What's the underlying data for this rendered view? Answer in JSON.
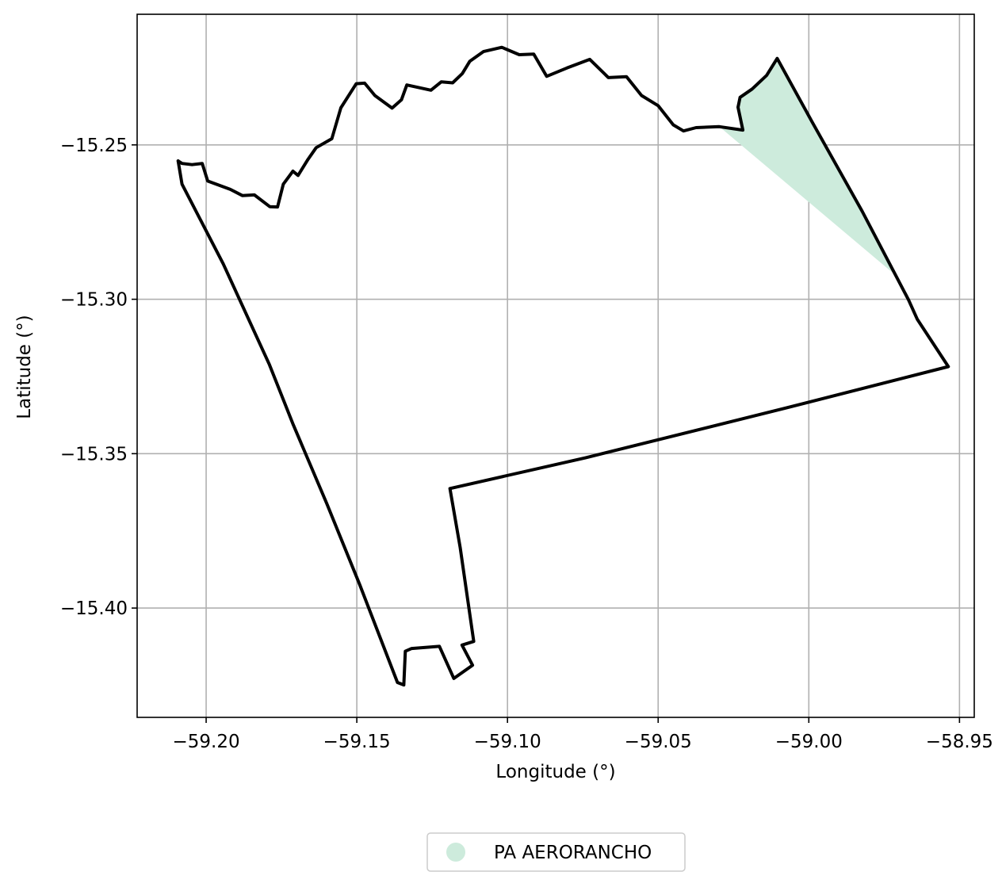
{
  "chart_data": {
    "type": "map",
    "title": "",
    "xlabel": "Longitude (°)",
    "ylabel": "Latitude (°)",
    "xlim": [
      -59.2229,
      -58.9451
    ],
    "ylim": [
      -15.4354,
      -15.2077
    ],
    "grid": true,
    "x_ticks": [
      -59.2,
      -59.15,
      -59.1,
      -59.05,
      -59.0,
      -58.95
    ],
    "x_tick_labels": [
      "−59.20",
      "−59.15",
      "−59.10",
      "−59.05",
      "−59.00",
      "−58.95"
    ],
    "y_ticks": [
      -15.25,
      -15.3,
      -15.35,
      -15.4
    ],
    "y_tick_labels": [
      "−15.25",
      "−15.30",
      "−15.35",
      "−15.40"
    ],
    "legend": {
      "placement": "bottom-center",
      "entries": [
        {
          "label": "PA AERORANCHO",
          "color": "#cdebdc"
        }
      ]
    },
    "series": [
      {
        "name": "boundary",
        "kind": "outline",
        "color": "#000000",
        "points": [
          [
            -59.2093,
            -15.2552
          ],
          [
            -59.208,
            -15.256
          ],
          [
            -59.2047,
            -15.2564
          ],
          [
            -59.2013,
            -15.256
          ],
          [
            -59.1995,
            -15.2617
          ],
          [
            -59.192,
            -15.2644
          ],
          [
            -59.188,
            -15.2664
          ],
          [
            -59.184,
            -15.2662
          ],
          [
            -59.1789,
            -15.27
          ],
          [
            -59.1763,
            -15.2701
          ],
          [
            -59.1744,
            -15.2627
          ],
          [
            -59.1712,
            -15.2585
          ],
          [
            -59.1695,
            -15.2599
          ],
          [
            -59.1662,
            -15.2547
          ],
          [
            -59.1635,
            -15.2509
          ],
          [
            -59.1583,
            -15.248
          ],
          [
            -59.1553,
            -15.238
          ],
          [
            -59.1502,
            -15.2302
          ],
          [
            -59.1474,
            -15.23
          ],
          [
            -59.144,
            -15.234
          ],
          [
            -59.1383,
            -15.2381
          ],
          [
            -59.1352,
            -15.2354
          ],
          [
            -59.1334,
            -15.2306
          ],
          [
            -59.1254,
            -15.2323
          ],
          [
            -59.122,
            -15.2296
          ],
          [
            -59.1182,
            -15.2299
          ],
          [
            -59.115,
            -15.2269
          ],
          [
            -59.1125,
            -15.2229
          ],
          [
            -59.108,
            -15.2198
          ],
          [
            -59.1019,
            -15.2184
          ],
          [
            -59.0961,
            -15.2208
          ],
          [
            -59.0913,
            -15.2206
          ],
          [
            -59.087,
            -15.2278
          ],
          [
            -59.0803,
            -15.2251
          ],
          [
            -59.0727,
            -15.2223
          ],
          [
            -59.0665,
            -15.2282
          ],
          [
            -59.0605,
            -15.2279
          ],
          [
            -59.0555,
            -15.234
          ],
          [
            -59.05,
            -15.2373
          ],
          [
            -59.045,
            -15.2435
          ],
          [
            -59.0416,
            -15.2455
          ],
          [
            -59.0374,
            -15.2444
          ],
          [
            -59.0297,
            -15.2441
          ],
          [
            -59.0219,
            -15.2452
          ],
          [
            -59.0235,
            -15.2378
          ],
          [
            -59.0228,
            -15.2346
          ],
          [
            -59.0188,
            -15.2319
          ],
          [
            -59.014,
            -15.2275
          ],
          [
            -59.0105,
            -15.222
          ],
          [
            -58.999,
            -15.2424
          ],
          [
            -58.9823,
            -15.2715
          ],
          [
            -58.9669,
            -15.3002
          ],
          [
            -58.964,
            -15.3065
          ],
          [
            -58.9537,
            -15.3218
          ],
          [
            -59.008,
            -15.3353
          ],
          [
            -59.074,
            -15.3513
          ],
          [
            -59.1191,
            -15.3613
          ],
          [
            -59.1157,
            -15.3804
          ],
          [
            -59.1112,
            -15.4108
          ],
          [
            -59.1151,
            -15.412
          ],
          [
            -59.1116,
            -15.4185
          ],
          [
            -59.1178,
            -15.4228
          ],
          [
            -59.1226,
            -15.4124
          ],
          [
            -59.1318,
            -15.4131
          ],
          [
            -59.1339,
            -15.414
          ],
          [
            -59.1344,
            -15.4249
          ],
          [
            -59.1365,
            -15.4241
          ],
          [
            -59.149,
            -15.3925
          ],
          [
            -59.16,
            -15.3661
          ],
          [
            -59.1711,
            -15.3406
          ],
          [
            -59.179,
            -15.3212
          ],
          [
            -59.1943,
            -15.2886
          ],
          [
            -59.208,
            -15.2627
          ],
          [
            -59.2093,
            -15.2552
          ]
        ]
      },
      {
        "name": "PA AERORANCHO",
        "kind": "fill",
        "color": "#cdebdc",
        "points": [
          [
            -59.0297,
            -15.2441
          ],
          [
            -59.0219,
            -15.2452
          ],
          [
            -59.0235,
            -15.2378
          ],
          [
            -59.0228,
            -15.2346
          ],
          [
            -59.0188,
            -15.2319
          ],
          [
            -59.014,
            -15.2275
          ],
          [
            -59.0105,
            -15.222
          ],
          [
            -58.999,
            -15.2424
          ],
          [
            -58.9823,
            -15.2715
          ],
          [
            -58.9712,
            -15.2922
          ],
          [
            -59.0297,
            -15.2441
          ]
        ]
      }
    ]
  }
}
